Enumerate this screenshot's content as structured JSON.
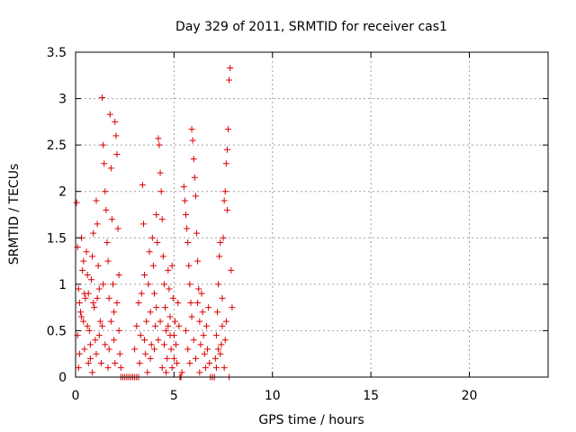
{
  "chart_data": {
    "type": "scatter",
    "title": "Day 329 of 2011, SRMTID for receiver cas1",
    "xlabel": "GPS time / hours",
    "ylabel": "SRMTID / TECUs",
    "xlim": [
      0,
      24
    ],
    "ylim": [
      0,
      3.5
    ],
    "xticks": [
      0,
      5,
      10,
      15,
      20
    ],
    "yticks": [
      0,
      0.5,
      1,
      1.5,
      2,
      2.5,
      3,
      3.5
    ],
    "xtick_labels": [
      "0",
      "5",
      "10",
      "15",
      "20"
    ],
    "ytick_labels": [
      "0",
      "0.5",
      "1",
      "1.5",
      "2",
      "2.5",
      "3",
      "3.5"
    ],
    "grid": true,
    "marker": "+",
    "color": "#dd0000",
    "series": [
      {
        "name": "SRMTID",
        "points": [
          [
            0.05,
            1.88
          ],
          [
            0.1,
            1.4
          ],
          [
            0.15,
            0.95
          ],
          [
            0.2,
            0.8
          ],
          [
            0.25,
            0.7
          ],
          [
            0.3,
            1.5
          ],
          [
            0.35,
            1.15
          ],
          [
            0.4,
            0.6
          ],
          [
            0.45,
            0.3
          ],
          [
            0.5,
            0.85
          ],
          [
            0.55,
            1.35
          ],
          [
            0.6,
            1.1
          ],
          [
            0.65,
            0.9
          ],
          [
            0.7,
            0.5
          ],
          [
            0.75,
            0.2
          ],
          [
            0.8,
            1.05
          ],
          [
            0.85,
            1.3
          ],
          [
            0.9,
            1.55
          ],
          [
            0.95,
            0.75
          ],
          [
            1.0,
            0.4
          ],
          [
            1.05,
            1.9
          ],
          [
            1.1,
            1.65
          ],
          [
            1.15,
            1.2
          ],
          [
            1.2,
            0.95
          ],
          [
            1.25,
            0.6
          ],
          [
            1.3,
            0.15
          ],
          [
            1.35,
            3.01
          ],
          [
            1.4,
            2.5
          ],
          [
            1.45,
            2.3
          ],
          [
            1.5,
            2.0
          ],
          [
            1.55,
            1.8
          ],
          [
            1.6,
            1.45
          ],
          [
            1.65,
            1.25
          ],
          [
            1.7,
            0.85
          ],
          [
            1.75,
            2.83
          ],
          [
            1.8,
            2.25
          ],
          [
            1.85,
            1.7
          ],
          [
            1.9,
            1.0
          ],
          [
            1.95,
            0.7
          ],
          [
            2.0,
            2.75
          ],
          [
            2.05,
            2.6
          ],
          [
            2.1,
            2.4
          ],
          [
            2.15,
            1.6
          ],
          [
            2.2,
            0.5
          ],
          [
            2.25,
            0.25
          ],
          [
            2.3,
            0.1
          ],
          [
            0.1,
            0.45
          ],
          [
            0.2,
            0.25
          ],
          [
            0.3,
            0.65
          ],
          [
            0.45,
            0.9
          ],
          [
            0.6,
            0.55
          ],
          [
            0.75,
            0.35
          ],
          [
            0.9,
            0.8
          ],
          [
            1.05,
            0.25
          ],
          [
            1.2,
            0.45
          ],
          [
            1.35,
            0.55
          ],
          [
            1.5,
            0.35
          ],
          [
            1.65,
            0.1
          ],
          [
            1.8,
            0.6
          ],
          [
            1.95,
            0.4
          ],
          [
            2.1,
            0.8
          ],
          [
            2.2,
            1.1
          ],
          [
            0.15,
            0.1
          ],
          [
            0.4,
            1.25
          ],
          [
            0.65,
            0.15
          ],
          [
            0.85,
            0.05
          ],
          [
            1.1,
            0.85
          ],
          [
            1.4,
            1.0
          ],
          [
            1.7,
            0.3
          ],
          [
            2.0,
            0.15
          ],
          [
            2.3,
            0.0
          ],
          [
            2.4,
            0.0
          ],
          [
            2.5,
            0.0
          ],
          [
            2.6,
            0.0
          ],
          [
            2.7,
            0.0
          ],
          [
            2.8,
            0.0
          ],
          [
            2.9,
            0.0
          ],
          [
            3.0,
            0.0
          ],
          [
            3.1,
            0.0
          ],
          [
            3.2,
            0.0
          ],
          [
            3.0,
            0.3
          ],
          [
            3.1,
            0.55
          ],
          [
            3.2,
            0.8
          ],
          [
            3.3,
            0.45
          ],
          [
            3.35,
            0.9
          ],
          [
            3.4,
            2.07
          ],
          [
            3.45,
            1.65
          ],
          [
            3.5,
            1.1
          ],
          [
            3.55,
            0.25
          ],
          [
            3.6,
            0.6
          ],
          [
            3.7,
            1.0
          ],
          [
            3.75,
            1.35
          ],
          [
            3.8,
            0.7
          ],
          [
            3.85,
            0.35
          ],
          [
            3.9,
            1.5
          ],
          [
            3.95,
            1.2
          ],
          [
            4.0,
            0.9
          ],
          [
            4.05,
            0.55
          ],
          [
            4.1,
            1.75
          ],
          [
            4.15,
            1.45
          ],
          [
            4.2,
            2.57
          ],
          [
            4.25,
            2.5
          ],
          [
            4.3,
            2.2
          ],
          [
            4.35,
            2.0
          ],
          [
            4.4,
            1.7
          ],
          [
            4.45,
            1.3
          ],
          [
            4.5,
            1.0
          ],
          [
            4.55,
            0.75
          ],
          [
            4.6,
            0.5
          ],
          [
            4.65,
            0.2
          ],
          [
            4.7,
            1.15
          ],
          [
            4.75,
            0.95
          ],
          [
            4.8,
            0.65
          ],
          [
            4.85,
            0.3
          ],
          [
            4.9,
            1.2
          ],
          [
            4.95,
            0.85
          ],
          [
            5.0,
            0.45
          ],
          [
            5.05,
            0.6
          ],
          [
            5.1,
            0.35
          ],
          [
            5.15,
            0.15
          ],
          [
            5.2,
            0.8
          ],
          [
            5.25,
            0.55
          ],
          [
            5.3,
            0.0
          ],
          [
            5.35,
            0.0
          ],
          [
            5.4,
            0.05
          ],
          [
            3.25,
            0.15
          ],
          [
            3.5,
            0.4
          ],
          [
            3.65,
            0.05
          ],
          [
            3.8,
            0.2
          ],
          [
            4.0,
            0.3
          ],
          [
            4.2,
            0.4
          ],
          [
            4.4,
            0.1
          ],
          [
            4.6,
            0.05
          ],
          [
            4.8,
            0.45
          ],
          [
            5.0,
            0.2
          ],
          [
            4.1,
            0.75
          ],
          [
            4.3,
            0.6
          ],
          [
            4.5,
            0.35
          ],
          [
            4.7,
            0.55
          ],
          [
            4.9,
            0.1
          ],
          [
            5.5,
            2.05
          ],
          [
            5.55,
            1.9
          ],
          [
            5.6,
            1.75
          ],
          [
            5.65,
            1.6
          ],
          [
            5.7,
            1.45
          ],
          [
            5.75,
            1.2
          ],
          [
            5.8,
            1.0
          ],
          [
            5.85,
            0.8
          ],
          [
            5.9,
            2.67
          ],
          [
            5.95,
            2.55
          ],
          [
            6.0,
            2.35
          ],
          [
            6.05,
            2.15
          ],
          [
            6.1,
            1.95
          ],
          [
            6.15,
            1.55
          ],
          [
            6.2,
            1.25
          ],
          [
            6.25,
            0.95
          ],
          [
            6.3,
            0.6
          ],
          [
            6.35,
            0.35
          ],
          [
            6.4,
            0.9
          ],
          [
            6.45,
            0.7
          ],
          [
            6.5,
            0.45
          ],
          [
            6.55,
            0.25
          ],
          [
            6.6,
            0.1
          ],
          [
            6.65,
            0.55
          ],
          [
            6.7,
            0.3
          ],
          [
            6.75,
            0.75
          ],
          [
            6.8,
            0.15
          ],
          [
            5.6,
            0.5
          ],
          [
            5.7,
            0.3
          ],
          [
            5.9,
            0.65
          ],
          [
            6.0,
            0.4
          ],
          [
            6.1,
            0.2
          ],
          [
            6.3,
            0.05
          ],
          [
            5.8,
            0.15
          ],
          [
            6.2,
            0.8
          ],
          [
            6.85,
            0.0
          ],
          [
            6.95,
            0.0
          ],
          [
            7.05,
            0.0
          ],
          [
            7.1,
            0.2
          ],
          [
            7.15,
            0.45
          ],
          [
            7.2,
            0.7
          ],
          [
            7.25,
            1.0
          ],
          [
            7.3,
            1.3
          ],
          [
            7.35,
            1.45
          ],
          [
            7.4,
            0.35
          ],
          [
            7.45,
            0.85
          ],
          [
            7.5,
            1.5
          ],
          [
            7.55,
            1.9
          ],
          [
            7.6,
            2.0
          ],
          [
            7.65,
            2.3
          ],
          [
            7.7,
            2.45
          ],
          [
            7.75,
            2.67
          ],
          [
            7.8,
            3.2
          ],
          [
            7.85,
            3.33
          ],
          [
            7.9,
            1.15
          ],
          [
            7.95,
            0.75
          ],
          [
            7.45,
            0.55
          ],
          [
            7.35,
            0.25
          ],
          [
            7.55,
            0.1
          ],
          [
            7.65,
            0.6
          ],
          [
            7.25,
            0.3
          ],
          [
            7.15,
            0.1
          ],
          [
            7.6,
            0.4
          ],
          [
            7.8,
            0.0
          ],
          [
            7.7,
            1.8
          ]
        ]
      }
    ]
  }
}
